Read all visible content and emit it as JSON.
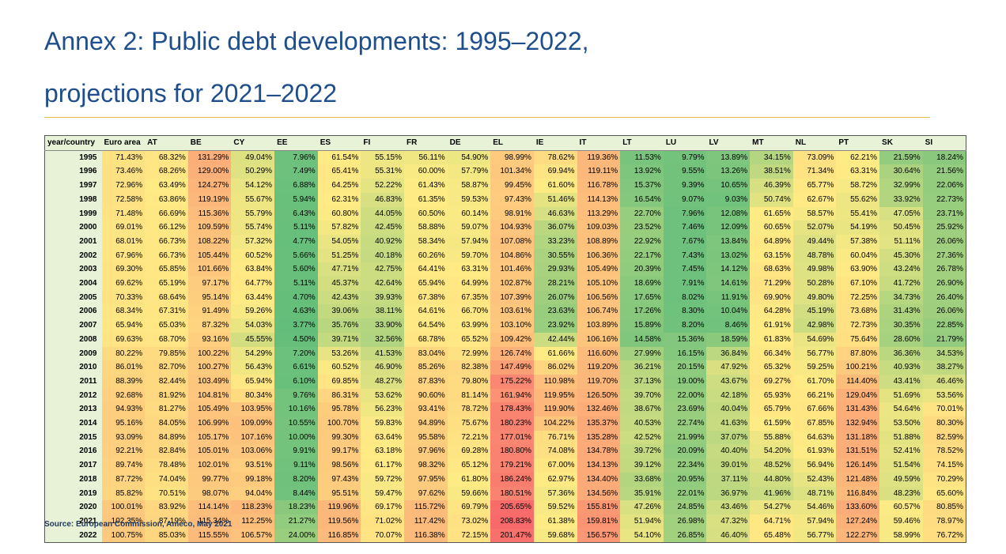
{
  "title": {
    "line1": "Annex 2: Public debt developments: 1995–2022,",
    "line2": "projections for 2021–2022"
  },
  "table": {
    "corner": "year/country",
    "columns": [
      "Euro area",
      "AT",
      "BE",
      "CY",
      "EE",
      "ES",
      "FI",
      "FR",
      "DE",
      "EL",
      "IE",
      "IT",
      "LT",
      "LU",
      "LV",
      "MT",
      "NL",
      "PT",
      "SK",
      "SI"
    ],
    "rows": [
      {
        "year": "1995",
        "values": [
          "71.43%",
          "68.32%",
          "131.29%",
          "49.04%",
          "7.96%",
          "61.54%",
          "55.15%",
          "56.11%",
          "54.90%",
          "98.99%",
          "78.62%",
          "119.36%",
          "11.53%",
          "9.79%",
          "13.89%",
          "34.15%",
          "73.09%",
          "62.21%",
          "21.59%",
          "18.24%"
        ]
      },
      {
        "year": "1996",
        "values": [
          "73.46%",
          "68.26%",
          "129.00%",
          "50.29%",
          "7.49%",
          "65.41%",
          "55.31%",
          "60.00%",
          "57.79%",
          "101.34%",
          "69.94%",
          "119.11%",
          "13.92%",
          "9.55%",
          "13.26%",
          "38.51%",
          "71.34%",
          "63.31%",
          "30.64%",
          "21.56%"
        ]
      },
      {
        "year": "1997",
        "values": [
          "72.96%",
          "63.49%",
          "124.27%",
          "54.12%",
          "6.88%",
          "64.25%",
          "52.22%",
          "61.43%",
          "58.87%",
          "99.45%",
          "61.60%",
          "116.78%",
          "15.37%",
          "9.39%",
          "10.65%",
          "46.39%",
          "65.77%",
          "58.72%",
          "32.99%",
          "22.06%"
        ]
      },
      {
        "year": "1998",
        "values": [
          "72.58%",
          "63.86%",
          "119.19%",
          "55.67%",
          "5.94%",
          "62.31%",
          "46.83%",
          "61.35%",
          "59.53%",
          "97.43%",
          "51.46%",
          "114.13%",
          "16.54%",
          "9.07%",
          "9.03%",
          "50.74%",
          "62.67%",
          "55.62%",
          "33.92%",
          "22.73%"
        ]
      },
      {
        "year": "1999",
        "values": [
          "71.48%",
          "66.69%",
          "115.36%",
          "55.79%",
          "6.43%",
          "60.80%",
          "44.05%",
          "60.50%",
          "60.14%",
          "98.91%",
          "46.63%",
          "113.29%",
          "22.70%",
          "7.96%",
          "12.08%",
          "61.65%",
          "58.57%",
          "55.41%",
          "47.05%",
          "23.71%"
        ]
      },
      {
        "year": "2000",
        "values": [
          "69.01%",
          "66.12%",
          "109.59%",
          "55.74%",
          "5.11%",
          "57.82%",
          "42.45%",
          "58.88%",
          "59.07%",
          "104.93%",
          "36.07%",
          "109.03%",
          "23.52%",
          "7.46%",
          "12.09%",
          "60.65%",
          "52.07%",
          "54.19%",
          "50.45%",
          "25.92%"
        ]
      },
      {
        "year": "2001",
        "values": [
          "68.01%",
          "66.73%",
          "108.22%",
          "57.32%",
          "4.77%",
          "54.05%",
          "40.92%",
          "58.34%",
          "57.94%",
          "107.08%",
          "33.23%",
          "108.89%",
          "22.92%",
          "7.67%",
          "13.84%",
          "64.89%",
          "49.44%",
          "57.38%",
          "51.11%",
          "26.06%"
        ]
      },
      {
        "year": "2002",
        "values": [
          "67.96%",
          "66.73%",
          "105.44%",
          "60.52%",
          "5.66%",
          "51.25%",
          "40.18%",
          "60.26%",
          "59.70%",
          "104.86%",
          "30.55%",
          "106.36%",
          "22.17%",
          "7.43%",
          "13.02%",
          "63.15%",
          "48.78%",
          "60.04%",
          "45.30%",
          "27.36%"
        ]
      },
      {
        "year": "2003",
        "values": [
          "69.30%",
          "65.85%",
          "101.66%",
          "63.84%",
          "5.60%",
          "47.71%",
          "42.75%",
          "64.41%",
          "63.31%",
          "101.46%",
          "29.93%",
          "105.49%",
          "20.39%",
          "7.45%",
          "14.12%",
          "68.63%",
          "49.98%",
          "63.90%",
          "43.24%",
          "26.78%"
        ]
      },
      {
        "year": "2004",
        "values": [
          "69.62%",
          "65.19%",
          "97.17%",
          "64.77%",
          "5.11%",
          "45.37%",
          "42.64%",
          "65.94%",
          "64.99%",
          "102.87%",
          "28.21%",
          "105.10%",
          "18.69%",
          "7.91%",
          "14.61%",
          "71.29%",
          "50.28%",
          "67.10%",
          "41.72%",
          "26.90%"
        ]
      },
      {
        "year": "2005",
        "values": [
          "70.33%",
          "68.64%",
          "95.14%",
          "63.44%",
          "4.70%",
          "42.43%",
          "39.93%",
          "67.38%",
          "67.35%",
          "107.39%",
          "26.07%",
          "106.56%",
          "17.65%",
          "8.02%",
          "11.91%",
          "69.90%",
          "49.80%",
          "72.25%",
          "34.73%",
          "26.40%"
        ]
      },
      {
        "year": "2006",
        "values": [
          "68.34%",
          "67.31%",
          "91.49%",
          "59.26%",
          "4.63%",
          "39.06%",
          "38.11%",
          "64.61%",
          "66.70%",
          "103.61%",
          "23.63%",
          "106.74%",
          "17.26%",
          "8.30%",
          "10.04%",
          "64.28%",
          "45.19%",
          "73.68%",
          "31.43%",
          "26.06%"
        ]
      },
      {
        "year": "2007",
        "values": [
          "65.94%",
          "65.03%",
          "87.32%",
          "54.03%",
          "3.77%",
          "35.76%",
          "33.90%",
          "64.54%",
          "63.99%",
          "103.10%",
          "23.92%",
          "103.89%",
          "15.89%",
          "8.20%",
          "8.46%",
          "61.91%",
          "42.98%",
          "72.73%",
          "30.35%",
          "22.85%"
        ]
      },
      {
        "year": "2008",
        "values": [
          "69.63%",
          "68.70%",
          "93.16%",
          "45.55%",
          "4.50%",
          "39.71%",
          "32.56%",
          "68.78%",
          "65.52%",
          "109.42%",
          "42.44%",
          "106.16%",
          "14.58%",
          "15.36%",
          "18.59%",
          "61.83%",
          "54.69%",
          "75.64%",
          "28.60%",
          "21.79%"
        ]
      },
      {
        "year": "2009",
        "values": [
          "80.22%",
          "79.85%",
          "100.22%",
          "54.29%",
          "7.20%",
          "53.26%",
          "41.53%",
          "83.04%",
          "72.99%",
          "126.74%",
          "61.66%",
          "116.60%",
          "27.99%",
          "16.15%",
          "36.84%",
          "66.34%",
          "56.77%",
          "87.80%",
          "36.36%",
          "34.53%"
        ]
      },
      {
        "year": "2010",
        "values": [
          "86.01%",
          "82.70%",
          "100.27%",
          "56.43%",
          "6.61%",
          "60.52%",
          "46.90%",
          "85.26%",
          "82.38%",
          "147.49%",
          "86.02%",
          "119.20%",
          "36.21%",
          "20.15%",
          "47.92%",
          "65.32%",
          "59.25%",
          "100.21%",
          "40.93%",
          "38.27%"
        ]
      },
      {
        "year": "2011",
        "values": [
          "88.39%",
          "82.44%",
          "103.49%",
          "65.94%",
          "6.10%",
          "69.85%",
          "48.27%",
          "87.83%",
          "79.80%",
          "175.22%",
          "110.98%",
          "119.70%",
          "37.13%",
          "19.00%",
          "43.67%",
          "69.27%",
          "61.70%",
          "114.40%",
          "43.41%",
          "46.46%"
        ]
      },
      {
        "year": "2012",
        "values": [
          "92.68%",
          "81.92%",
          "104.81%",
          "80.34%",
          "9.76%",
          "86.31%",
          "53.62%",
          "90.60%",
          "81.14%",
          "161.94%",
          "119.95%",
          "126.50%",
          "39.70%",
          "22.00%",
          "42.18%",
          "65.93%",
          "66.21%",
          "129.04%",
          "51.69%",
          "53.56%"
        ]
      },
      {
        "year": "2013",
        "values": [
          "94.93%",
          "81.27%",
          "105.49%",
          "103.95%",
          "10.16%",
          "95.78%",
          "56.23%",
          "93.41%",
          "78.72%",
          "178.43%",
          "119.90%",
          "132.46%",
          "38.67%",
          "23.69%",
          "40.04%",
          "65.79%",
          "67.66%",
          "131.43%",
          "54.64%",
          "70.01%"
        ]
      },
      {
        "year": "2014",
        "values": [
          "95.16%",
          "84.05%",
          "106.99%",
          "109.09%",
          "10.55%",
          "100.70%",
          "59.83%",
          "94.89%",
          "75.67%",
          "180.23%",
          "104.22%",
          "135.37%",
          "40.53%",
          "22.74%",
          "41.63%",
          "61.59%",
          "67.85%",
          "132.94%",
          "53.50%",
          "80.30%"
        ]
      },
      {
        "year": "2015",
        "values": [
          "93.09%",
          "84.89%",
          "105.17%",
          "107.16%",
          "10.00%",
          "99.30%",
          "63.64%",
          "95.58%",
          "72.21%",
          "177.01%",
          "76.71%",
          "135.28%",
          "42.52%",
          "21.99%",
          "37.07%",
          "55.88%",
          "64.63%",
          "131.18%",
          "51.88%",
          "82.59%"
        ]
      },
      {
        "year": "2016",
        "values": [
          "92.21%",
          "82.84%",
          "105.01%",
          "103.06%",
          "9.91%",
          "99.17%",
          "63.18%",
          "97.96%",
          "69.28%",
          "180.80%",
          "74.08%",
          "134.78%",
          "39.72%",
          "20.09%",
          "40.40%",
          "54.20%",
          "61.93%",
          "131.51%",
          "52.41%",
          "78.52%"
        ]
      },
      {
        "year": "2017",
        "values": [
          "89.74%",
          "78.48%",
          "102.01%",
          "93.51%",
          "9.11%",
          "98.56%",
          "61.17%",
          "98.32%",
          "65.12%",
          "179.21%",
          "67.00%",
          "134.13%",
          "39.12%",
          "22.34%",
          "39.01%",
          "48.52%",
          "56.94%",
          "126.14%",
          "51.54%",
          "74.15%"
        ]
      },
      {
        "year": "2018",
        "values": [
          "87.72%",
          "74.04%",
          "99.77%",
          "99.18%",
          "8.20%",
          "97.43%",
          "59.72%",
          "97.95%",
          "61.80%",
          "186.24%",
          "62.97%",
          "134.40%",
          "33.68%",
          "20.95%",
          "37.11%",
          "44.80%",
          "52.43%",
          "121.48%",
          "49.59%",
          "70.29%"
        ]
      },
      {
        "year": "2019",
        "values": [
          "85.82%",
          "70.51%",
          "98.07%",
          "94.04%",
          "8.44%",
          "95.51%",
          "59.47%",
          "97.62%",
          "59.66%",
          "180.51%",
          "57.36%",
          "134.56%",
          "35.91%",
          "22.01%",
          "36.97%",
          "41.96%",
          "48.71%",
          "116.84%",
          "48.23%",
          "65.60%"
        ]
      },
      {
        "year": "2020",
        "values": [
          "100.01%",
          "83.92%",
          "114.14%",
          "118.23%",
          "18.23%",
          "119.96%",
          "69.17%",
          "115.72%",
          "69.79%",
          "205.65%",
          "59.52%",
          "155.81%",
          "47.26%",
          "24.85%",
          "43.46%",
          "54.27%",
          "54.46%",
          "133.60%",
          "60.57%",
          "80.85%"
        ]
      },
      {
        "year": "2021",
        "values": [
          "102.35%",
          "87.19%",
          "115.34%",
          "112.25%",
          "21.27%",
          "119.56%",
          "71.02%",
          "117.42%",
          "73.02%",
          "208.83%",
          "61.38%",
          "159.81%",
          "51.94%",
          "26.98%",
          "47.32%",
          "64.71%",
          "57.94%",
          "127.24%",
          "59.46%",
          "78.97%"
        ]
      },
      {
        "year": "2022",
        "values": [
          "100.75%",
          "85.03%",
          "115.55%",
          "106.57%",
          "24.00%",
          "116.85%",
          "70.07%",
          "116.38%",
          "72.15%",
          "201.47%",
          "59.68%",
          "156.57%",
          "54.10%",
          "26.85%",
          "46.40%",
          "65.48%",
          "56.77%",
          "122.27%",
          "58.99%",
          "76.72%"
        ]
      }
    ]
  },
  "source": "Source: European Commission, Ameco, May 2021",
  "colors": {
    "title": "#1f4e8c",
    "rule": "#e8b84a",
    "low": "#63be7b",
    "mid": "#ffeb84",
    "high": "#f8696b",
    "year_bg": "#e7f2d6"
  }
}
